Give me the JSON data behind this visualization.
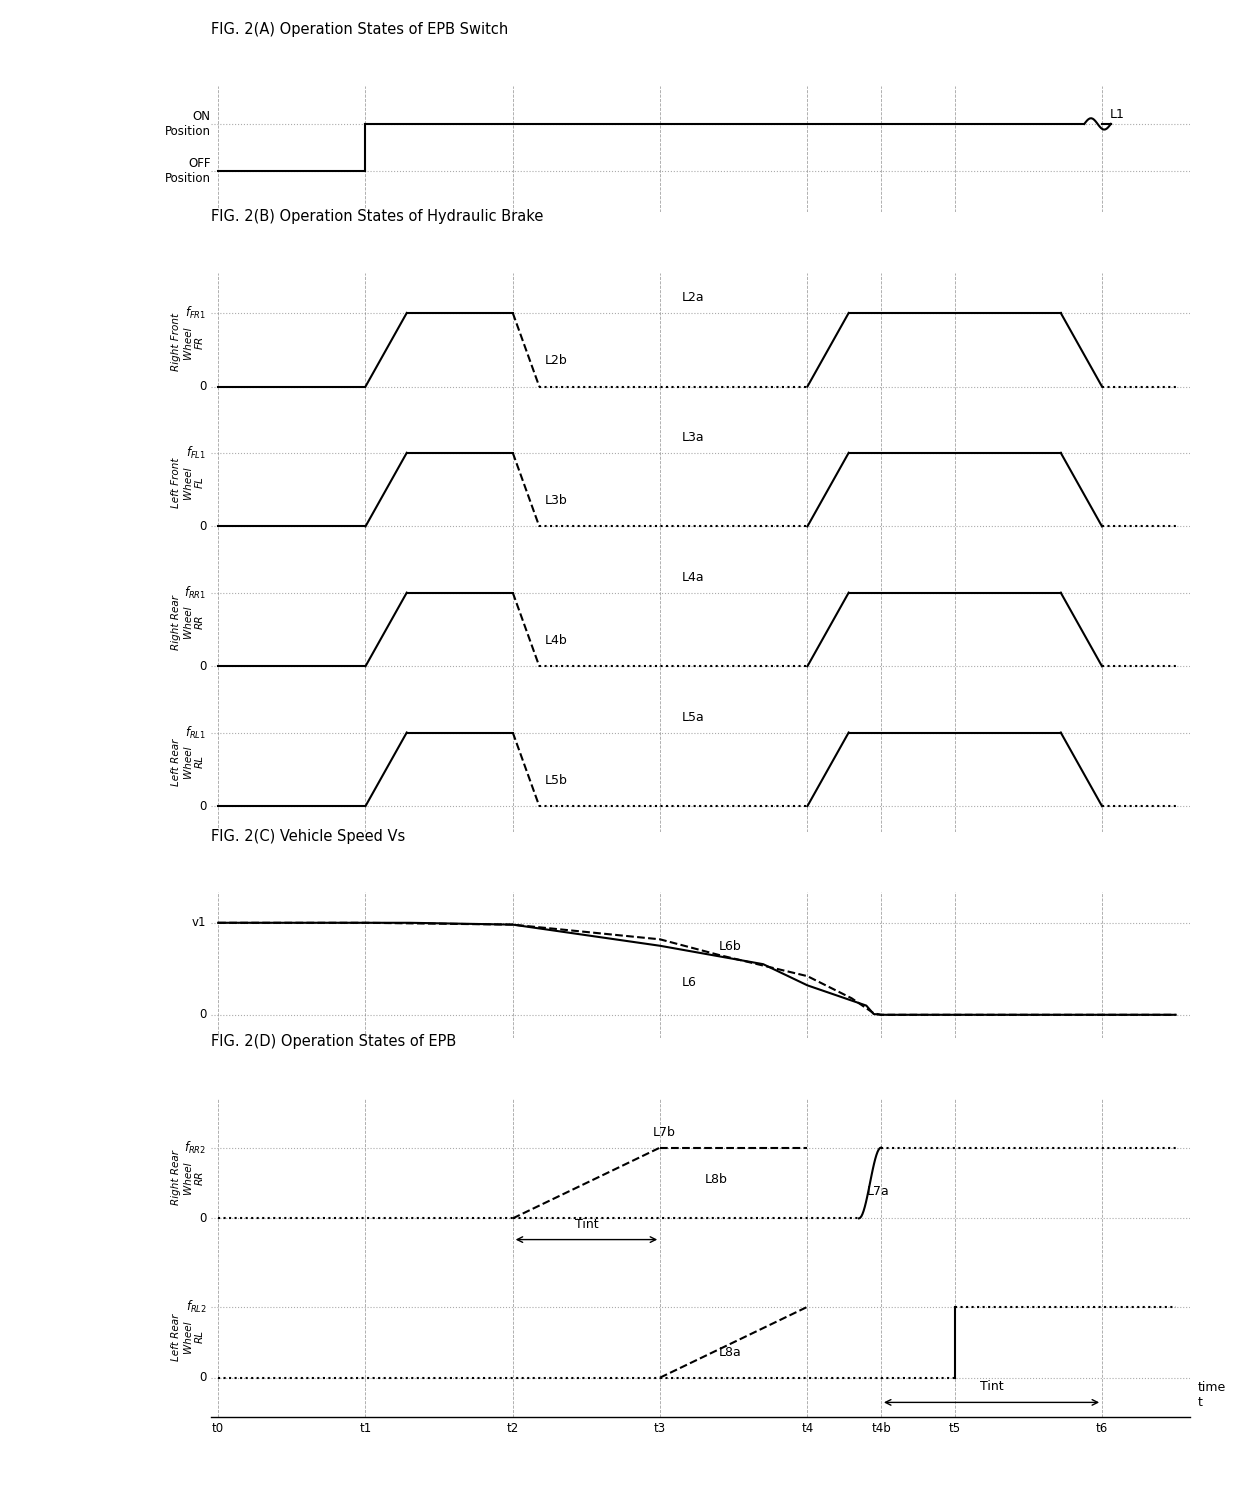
{
  "fig_title_A": "FIG. 2(A) Operation States of EPB Switch",
  "fig_title_B": "FIG. 2(B) Operation States of Hydraulic Brake",
  "fig_title_C": "FIG. 2(C) Vehicle Speed Vs",
  "fig_title_D": "FIG. 2(D) Operation States of EPB",
  "time_ticks": [
    "t0",
    "t1",
    "t2",
    "t3",
    "t4",
    "t4b",
    "t5",
    "t6"
  ],
  "time_vals": [
    0,
    1,
    2,
    3,
    4,
    4.5,
    5,
    6
  ],
  "xlim": [
    -0.05,
    6.6
  ],
  "background": "#ffffff",
  "line_color": "#000000"
}
